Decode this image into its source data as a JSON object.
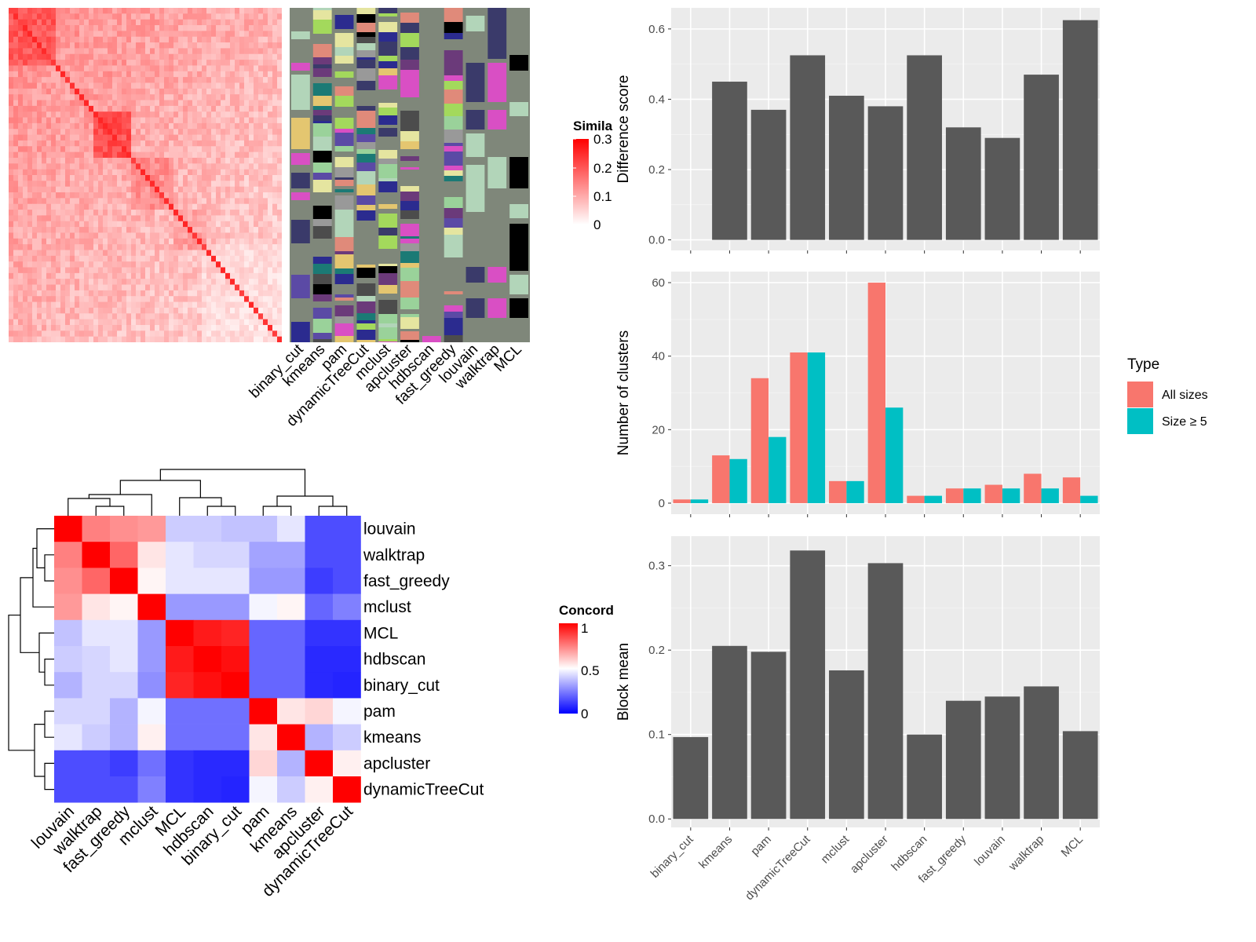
{
  "colors": {
    "similarity_high": "#ff0000",
    "similarity_low": "#ffffff",
    "concord_high": "#ff0000",
    "concord_mid": "#ffffff",
    "concord_low": "#0000ff",
    "panel_bg": "#ebebeb",
    "bar_dark": "#595959",
    "all_sizes": "#f8766d",
    "size_ge5": "#00bfc4",
    "class_bg": "#7f877a"
  },
  "similarity_legend": {
    "title": "Simila",
    "ticks": [
      "0.3",
      "0.2",
      "0.1",
      "0"
    ]
  },
  "concord_legend": {
    "title": "Concord",
    "ticks": [
      "1",
      "0.5",
      "0"
    ]
  },
  "type_legend": {
    "title": "Type",
    "items": [
      "All sizes",
      "Size ≥ 5"
    ]
  },
  "chart_data": [
    {
      "type": "heatmap",
      "description_key": "similarity_matrix",
      "legend_title": "Simila",
      "legend_ticks": [
        "0.3",
        "0.2",
        "0.1",
        "0"
      ],
      "annotation_columns": [
        "binary_cut",
        "kmeans",
        "pam",
        "dynamicTreeCut",
        "mclust",
        "apcluster",
        "hdbscan",
        "fast_greedy",
        "louvain",
        "walktrap",
        "MCL"
      ]
    },
    {
      "type": "heatmap",
      "description_key": "concordance_matrix",
      "legend_title": "Concord",
      "legend_ticks": [
        "1",
        "0.5",
        "0"
      ],
      "rows": [
        "louvain",
        "walktrap",
        "fast_greedy",
        "mclust",
        "MCL",
        "hdbscan",
        "binary_cut",
        "pam",
        "kmeans",
        "apcluster",
        "dynamicTreeCut"
      ],
      "columns": [
        "louvain",
        "walktrap",
        "fast_greedy",
        "mclust",
        "MCL",
        "hdbscan",
        "binary_cut",
        "pam",
        "kmeans",
        "apcluster",
        "dynamicTreeCut"
      ],
      "values": [
        [
          1.0,
          0.75,
          0.72,
          0.7,
          0.4,
          0.4,
          0.38,
          0.38,
          0.45,
          0.15,
          0.15
        ],
        [
          0.75,
          1.0,
          0.8,
          0.55,
          0.45,
          0.42,
          0.42,
          0.32,
          0.32,
          0.15,
          0.15
        ],
        [
          0.72,
          0.8,
          1.0,
          0.52,
          0.45,
          0.45,
          0.45,
          0.3,
          0.3,
          0.12,
          0.15
        ],
        [
          0.7,
          0.55,
          0.52,
          1.0,
          0.3,
          0.3,
          0.3,
          0.48,
          0.52,
          0.2,
          0.25
        ],
        [
          0.38,
          0.45,
          0.45,
          0.3,
          1.0,
          0.95,
          0.93,
          0.2,
          0.2,
          0.1,
          0.1
        ],
        [
          0.4,
          0.42,
          0.45,
          0.3,
          0.95,
          1.0,
          0.97,
          0.2,
          0.2,
          0.08,
          0.08
        ],
        [
          0.35,
          0.42,
          0.42,
          0.28,
          0.93,
          0.97,
          1.0,
          0.2,
          0.2,
          0.08,
          0.07
        ],
        [
          0.42,
          0.42,
          0.35,
          0.48,
          0.22,
          0.22,
          0.22,
          1.0,
          0.55,
          0.58,
          0.48
        ],
        [
          0.45,
          0.4,
          0.35,
          0.53,
          0.22,
          0.22,
          0.22,
          0.55,
          1.0,
          0.35,
          0.4
        ],
        [
          0.15,
          0.15,
          0.12,
          0.22,
          0.1,
          0.08,
          0.08,
          0.58,
          0.35,
          1.0,
          0.53
        ],
        [
          0.15,
          0.15,
          0.15,
          0.25,
          0.1,
          0.08,
          0.07,
          0.48,
          0.4,
          0.53,
          1.0
        ]
      ]
    },
    {
      "type": "bar",
      "ylabel": "Difference score",
      "categories": [
        "binary_cut",
        "kmeans",
        "pam",
        "dynamicTreeCut",
        "mclust",
        "apcluster",
        "hdbscan",
        "fast_greedy",
        "louvain",
        "walktrap",
        "MCL"
      ],
      "values": [
        0.0,
        0.45,
        0.37,
        0.525,
        0.41,
        0.38,
        0.525,
        0.32,
        0.29,
        0.47,
        0.625
      ],
      "ylim": [
        -0.03,
        0.66
      ],
      "yticks": [
        "0.0",
        "0.2",
        "0.4",
        "0.6"
      ],
      "ytick_values": [
        0,
        0.2,
        0.4,
        0.6
      ]
    },
    {
      "type": "bar",
      "ylabel": "Number of clusters",
      "categories": [
        "binary_cut",
        "kmeans",
        "pam",
        "dynamicTreeCut",
        "mclust",
        "apcluster",
        "hdbscan",
        "fast_greedy",
        "louvain",
        "walktrap",
        "MCL"
      ],
      "series": [
        {
          "name": "All sizes",
          "values": [
            1,
            13,
            34,
            41,
            6,
            60,
            2,
            4,
            5,
            8,
            7
          ]
        },
        {
          "name": "Size ≥ 5",
          "values": [
            1,
            12,
            18,
            41,
            6,
            26,
            2,
            4,
            4,
            4,
            2
          ]
        }
      ],
      "ylim": [
        -3,
        63
      ],
      "yticks": [
        "0",
        "20",
        "40",
        "60"
      ],
      "ytick_values": [
        0,
        20,
        40,
        60
      ],
      "legend_title": "Type",
      "legend_position": "right"
    },
    {
      "type": "bar",
      "ylabel": "Block mean",
      "categories": [
        "binary_cut",
        "kmeans",
        "pam",
        "dynamicTreeCut",
        "mclust",
        "apcluster",
        "hdbscan",
        "fast_greedy",
        "louvain",
        "walktrap",
        "MCL"
      ],
      "values": [
        0.097,
        0.205,
        0.198,
        0.318,
        0.176,
        0.303,
        0.1,
        0.14,
        0.145,
        0.157,
        0.104
      ],
      "ylim": [
        -0.01,
        0.335
      ],
      "yticks": [
        "0.0",
        "0.1",
        "0.2",
        "0.3"
      ],
      "ytick_values": [
        0,
        0.1,
        0.2,
        0.3
      ]
    }
  ]
}
